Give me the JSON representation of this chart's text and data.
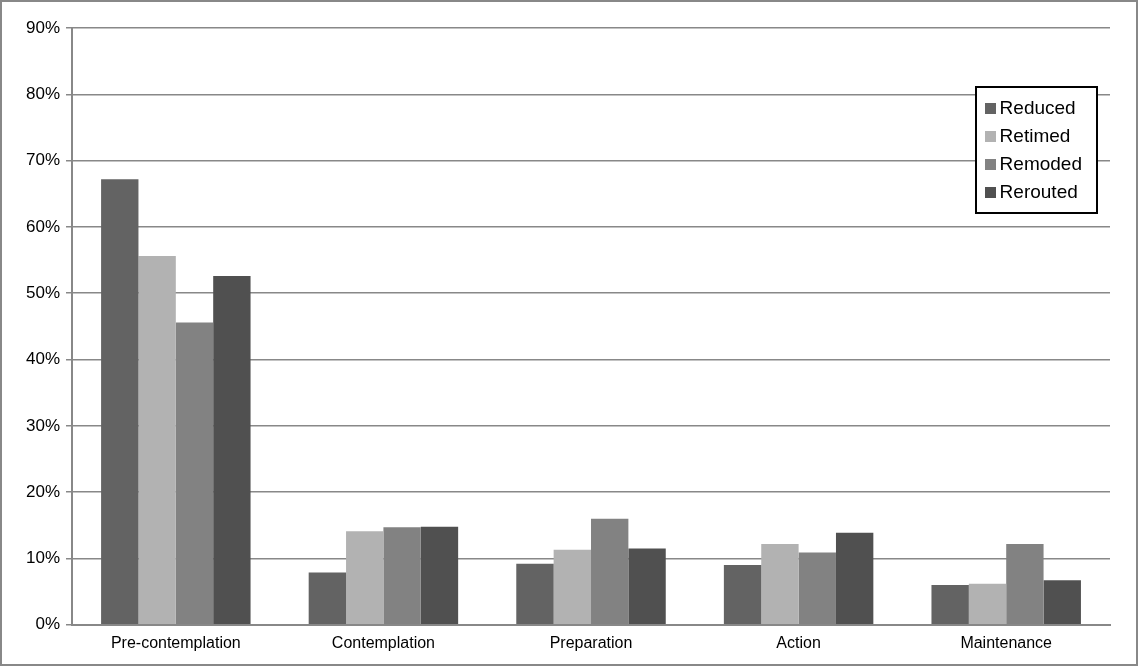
{
  "chart_data": {
    "type": "bar",
    "categories": [
      "Pre-contemplation",
      "Contemplation",
      "Preparation",
      "Action",
      "Maintenance"
    ],
    "series": [
      {
        "name": "Reduced",
        "color": "#636363",
        "values": [
          67.2,
          7.9,
          9.2,
          9.0,
          6.0
        ]
      },
      {
        "name": "Retimed",
        "color": "#b2b2b2",
        "values": [
          55.6,
          14.1,
          11.3,
          12.2,
          6.2
        ]
      },
      {
        "name": "Remoded",
        "color": "#828282",
        "values": [
          45.6,
          14.7,
          16.0,
          10.9,
          12.2
        ]
      },
      {
        "name": "Rerouted",
        "color": "#505050",
        "values": [
          52.6,
          14.8,
          11.5,
          13.9,
          6.7
        ]
      }
    ],
    "ylim": [
      0,
      90
    ],
    "yticks": [
      {
        "value": 0,
        "label": "0%"
      },
      {
        "value": 10,
        "label": "10%"
      },
      {
        "value": 20,
        "label": "20%"
      },
      {
        "value": 30,
        "label": "30%"
      },
      {
        "value": 40,
        "label": "40%"
      },
      {
        "value": 50,
        "label": "50%"
      },
      {
        "value": 60,
        "label": "60%"
      },
      {
        "value": 70,
        "label": "70%"
      },
      {
        "value": 80,
        "label": "80%"
      },
      {
        "value": 90,
        "label": "90%"
      }
    ],
    "grid": "y",
    "legend": "top right"
  }
}
